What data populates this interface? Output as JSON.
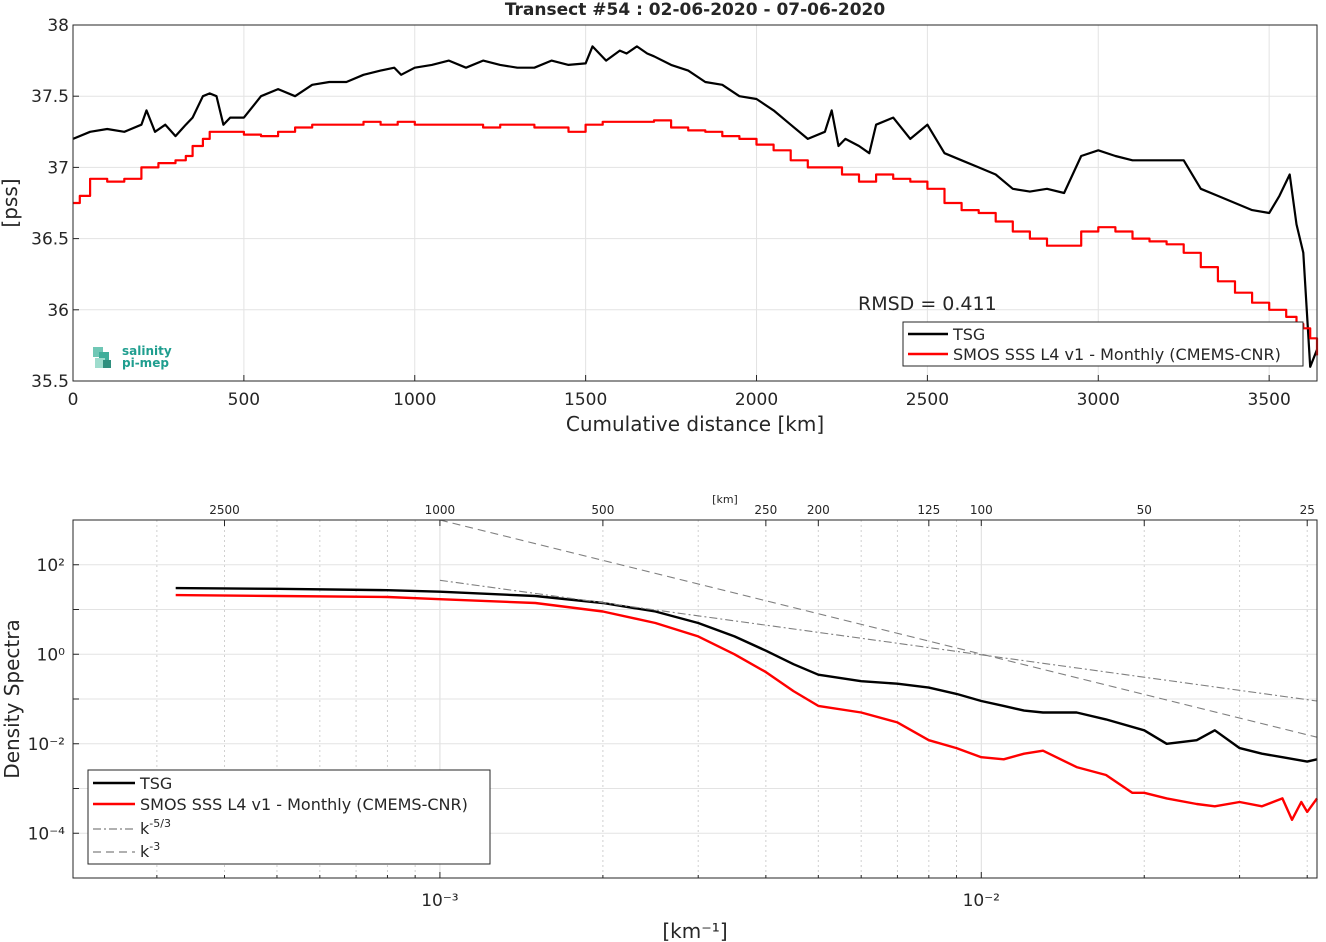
{
  "chart_data": [
    {
      "type": "line",
      "title": "Transect #54 : 02-06-2020 - 07-06-2020",
      "xlabel": "Cumulative distance [km]",
      "ylabel": "[pss]",
      "xlim": [
        0,
        3640
      ],
      "ylim": [
        35.5,
        38
      ],
      "xticks": [
        0,
        500,
        1000,
        1500,
        2000,
        2500,
        3000,
        3500
      ],
      "xtick_labels": [
        "0",
        "500",
        "1000",
        "1500",
        "2000",
        "2500",
        "3000",
        "3500"
      ],
      "yticks": [
        35.5,
        36,
        36.5,
        37,
        37.5,
        38
      ],
      "ytick_labels": [
        "35.5",
        "36",
        "36.5",
        "37",
        "37.5",
        "38"
      ],
      "grid": true,
      "legend_position": "bottom-right",
      "annotation": "RMSD = 0.411",
      "logo": [
        "salinity",
        "pi-mep"
      ],
      "series": [
        {
          "name": "TSG",
          "color": "#000000",
          "x": [
            0,
            50,
            100,
            150,
            200,
            215,
            240,
            270,
            300,
            330,
            350,
            380,
            400,
            420,
            440,
            460,
            500,
            550,
            600,
            650,
            700,
            750,
            800,
            850,
            900,
            940,
            960,
            1000,
            1050,
            1100,
            1150,
            1200,
            1250,
            1300,
            1350,
            1400,
            1450,
            1500,
            1520,
            1540,
            1560,
            1600,
            1620,
            1650,
            1680,
            1700,
            1750,
            1800,
            1850,
            1900,
            1950,
            2000,
            2050,
            2100,
            2150,
            2200,
            2220,
            2240,
            2260,
            2300,
            2330,
            2350,
            2400,
            2450,
            2500,
            2550,
            2600,
            2650,
            2700,
            2750,
            2800,
            2850,
            2900,
            2950,
            3000,
            3050,
            3100,
            3150,
            3200,
            3250,
            3300,
            3350,
            3400,
            3450,
            3500,
            3530,
            3560,
            3580,
            3600,
            3620,
            3640
          ],
          "y": [
            37.2,
            37.25,
            37.27,
            37.25,
            37.3,
            37.4,
            37.25,
            37.3,
            37.22,
            37.3,
            37.35,
            37.5,
            37.52,
            37.5,
            37.3,
            37.35,
            37.35,
            37.5,
            37.55,
            37.5,
            37.58,
            37.6,
            37.6,
            37.65,
            37.68,
            37.7,
            37.65,
            37.7,
            37.72,
            37.75,
            37.7,
            37.75,
            37.72,
            37.7,
            37.7,
            37.75,
            37.72,
            37.73,
            37.85,
            37.8,
            37.75,
            37.82,
            37.8,
            37.85,
            37.8,
            37.78,
            37.72,
            37.68,
            37.6,
            37.58,
            37.5,
            37.48,
            37.4,
            37.3,
            37.2,
            37.25,
            37.4,
            37.15,
            37.2,
            37.15,
            37.1,
            37.3,
            37.35,
            37.2,
            37.3,
            37.1,
            37.05,
            37.0,
            36.95,
            36.85,
            36.83,
            36.85,
            36.82,
            37.08,
            37.12,
            37.08,
            37.05,
            37.05,
            37.05,
            37.05,
            36.85,
            36.8,
            36.75,
            36.7,
            36.68,
            36.8,
            36.95,
            36.6,
            36.4,
            35.6,
            35.72
          ]
        },
        {
          "name": "SMOS SSS L4 v1 - Monthly (CMEMS-CNR)",
          "color": "#ff0000",
          "x": [
            0,
            20,
            50,
            100,
            150,
            200,
            250,
            300,
            330,
            350,
            380,
            400,
            450,
            500,
            550,
            600,
            650,
            700,
            750,
            800,
            850,
            900,
            950,
            1000,
            1050,
            1100,
            1150,
            1200,
            1250,
            1300,
            1350,
            1400,
            1450,
            1500,
            1550,
            1600,
            1650,
            1700,
            1750,
            1800,
            1850,
            1900,
            1950,
            2000,
            2050,
            2100,
            2150,
            2200,
            2250,
            2300,
            2350,
            2400,
            2450,
            2500,
            2550,
            2600,
            2650,
            2700,
            2750,
            2800,
            2850,
            2880,
            2950,
            3000,
            3050,
            3100,
            3150,
            3200,
            3250,
            3300,
            3350,
            3400,
            3450,
            3500,
            3550,
            3580,
            3600,
            3620,
            3640
          ],
          "y": [
            36.75,
            36.8,
            36.92,
            36.9,
            36.92,
            37.0,
            37.03,
            37.05,
            37.08,
            37.15,
            37.2,
            37.25,
            37.25,
            37.23,
            37.22,
            37.25,
            37.28,
            37.3,
            37.3,
            37.3,
            37.32,
            37.3,
            37.32,
            37.3,
            37.3,
            37.3,
            37.3,
            37.28,
            37.3,
            37.3,
            37.28,
            37.28,
            37.25,
            37.3,
            37.32,
            37.32,
            37.32,
            37.33,
            37.28,
            37.26,
            37.25,
            37.22,
            37.2,
            37.16,
            37.12,
            37.05,
            37.0,
            37.0,
            36.95,
            36.9,
            36.95,
            36.92,
            36.9,
            36.85,
            36.75,
            36.7,
            36.68,
            36.62,
            36.55,
            36.5,
            36.45,
            36.45,
            36.55,
            36.58,
            36.55,
            36.5,
            36.48,
            36.46,
            36.4,
            36.3,
            36.2,
            36.12,
            36.05,
            36.0,
            35.95,
            35.9,
            35.87,
            35.8,
            35.68
          ]
        }
      ]
    },
    {
      "type": "line",
      "top_axis_label": "[km]",
      "xlabel": "[km⁻¹]",
      "ylabel": "Density Spectra",
      "x_scale": "log",
      "y_scale": "log",
      "xlim": [
        0.00021,
        0.0417
      ],
      "ylim": [
        1e-05,
        1000
      ],
      "xtick_labels": [
        "10⁻³",
        "10⁻²"
      ],
      "xticks": [
        0.001,
        0.01
      ],
      "ytick_labels": [
        "10²",
        "10⁰",
        "10⁻²",
        "10⁻⁴"
      ],
      "yticks": [
        100,
        1,
        0.01,
        0.0001
      ],
      "top_ticks_km": [
        2500,
        1000,
        500,
        250,
        200,
        125,
        100,
        50,
        25
      ],
      "top_tick_labels": [
        "2500",
        "1000",
        "500",
        "250",
        "200",
        "125",
        "100",
        "50",
        "25"
      ],
      "grid": true,
      "legend_position": "bottom-left",
      "series": [
        {
          "name": "TSG",
          "color": "#000000",
          "style": "solid",
          "x": [
            0.000325,
            0.0005,
            0.0008,
            0.001,
            0.0015,
            0.002,
            0.0025,
            0.003,
            0.0035,
            0.004,
            0.0045,
            0.005,
            0.006,
            0.007,
            0.008,
            0.009,
            0.01,
            0.011,
            0.012,
            0.013,
            0.015,
            0.017,
            0.02,
            0.022,
            0.025,
            0.027,
            0.03,
            0.033,
            0.036,
            0.04,
            0.0417
          ],
          "y": [
            30,
            29,
            27,
            25,
            20,
            14,
            9,
            5,
            2.5,
            1.2,
            0.6,
            0.35,
            0.25,
            0.22,
            0.18,
            0.13,
            0.09,
            0.07,
            0.055,
            0.05,
            0.05,
            0.035,
            0.02,
            0.01,
            0.012,
            0.02,
            0.008,
            0.006,
            0.005,
            0.004,
            0.0045
          ]
        },
        {
          "name": "SMOS SSS L4 v1 - Monthly (CMEMS-CNR)",
          "color": "#ff0000",
          "style": "solid",
          "x": [
            0.000325,
            0.0005,
            0.0008,
            0.001,
            0.0015,
            0.002,
            0.0025,
            0.003,
            0.0035,
            0.004,
            0.0045,
            0.005,
            0.006,
            0.007,
            0.008,
            0.009,
            0.01,
            0.011,
            0.012,
            0.013,
            0.015,
            0.017,
            0.019,
            0.02,
            0.022,
            0.025,
            0.027,
            0.03,
            0.033,
            0.036,
            0.0375,
            0.039,
            0.04,
            0.0417
          ],
          "y": [
            21,
            20,
            19,
            17,
            14,
            9,
            5,
            2.5,
            1,
            0.4,
            0.15,
            0.07,
            0.05,
            0.03,
            0.012,
            0.008,
            0.005,
            0.0045,
            0.006,
            0.007,
            0.003,
            0.002,
            0.0008,
            0.0008,
            0.0006,
            0.00045,
            0.0004,
            0.0005,
            0.0004,
            0.0006,
            0.0002,
            0.0005,
            0.0003,
            0.0006
          ]
        },
        {
          "name": "k⁻⁵ᐟ³",
          "legend_base": "k",
          "legend_exp": "-5/3",
          "color": "#808080",
          "style": "dashdot",
          "x": [
            0.001,
            0.0417
          ],
          "y": [
            45,
            0.09
          ]
        },
        {
          "name": "k⁻³",
          "legend_base": "k",
          "legend_exp": "-3",
          "color": "#808080",
          "style": "dashed",
          "x": [
            0.001,
            0.0417
          ],
          "y": [
            1000,
            0.014
          ]
        }
      ]
    }
  ]
}
